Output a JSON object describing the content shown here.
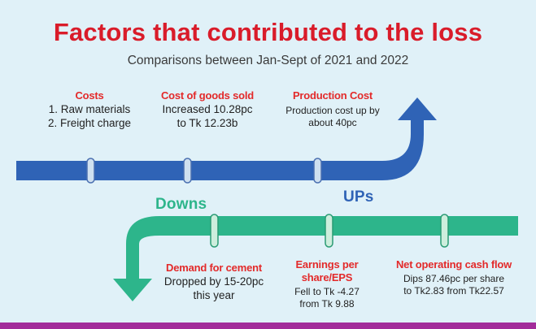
{
  "title": "Factors that contributed to the loss",
  "subtitle": "Comparisons between Jan-Sept of 2021 and 2022",
  "colors": {
    "background": "#e0f1f8",
    "title": "#d91c2a",
    "heading": "#e32a2a",
    "ups_arrow": "#2f63b6",
    "downs_arrow": "#2db58b",
    "bottom_rule": "#a22c9a"
  },
  "ups": {
    "label": "UPs",
    "items": [
      {
        "heading": "Costs",
        "lines": [
          "1. Raw materials",
          "2. Freight charge"
        ]
      },
      {
        "heading": "Cost of goods sold",
        "lines": [
          "Increased 10.28pc",
          "to Tk 12.23b"
        ]
      },
      {
        "heading": "Production Cost",
        "lines": [
          "Production cost up by",
          "about 40pc"
        ]
      }
    ]
  },
  "downs": {
    "label": "Downs",
    "items": [
      {
        "heading": [
          "Demand for cement"
        ],
        "lines": [
          "Dropped by 15-20pc",
          "this year"
        ]
      },
      {
        "heading": [
          "Earnings per",
          "share/EPS"
        ],
        "lines": [
          "Fell to Tk -4.27",
          "from Tk 9.88"
        ]
      },
      {
        "heading": [
          "Net operating cash flow"
        ],
        "lines": [
          "Dips 87.46pc  per share",
          "to Tk2.83 from Tk22.57"
        ]
      }
    ]
  }
}
